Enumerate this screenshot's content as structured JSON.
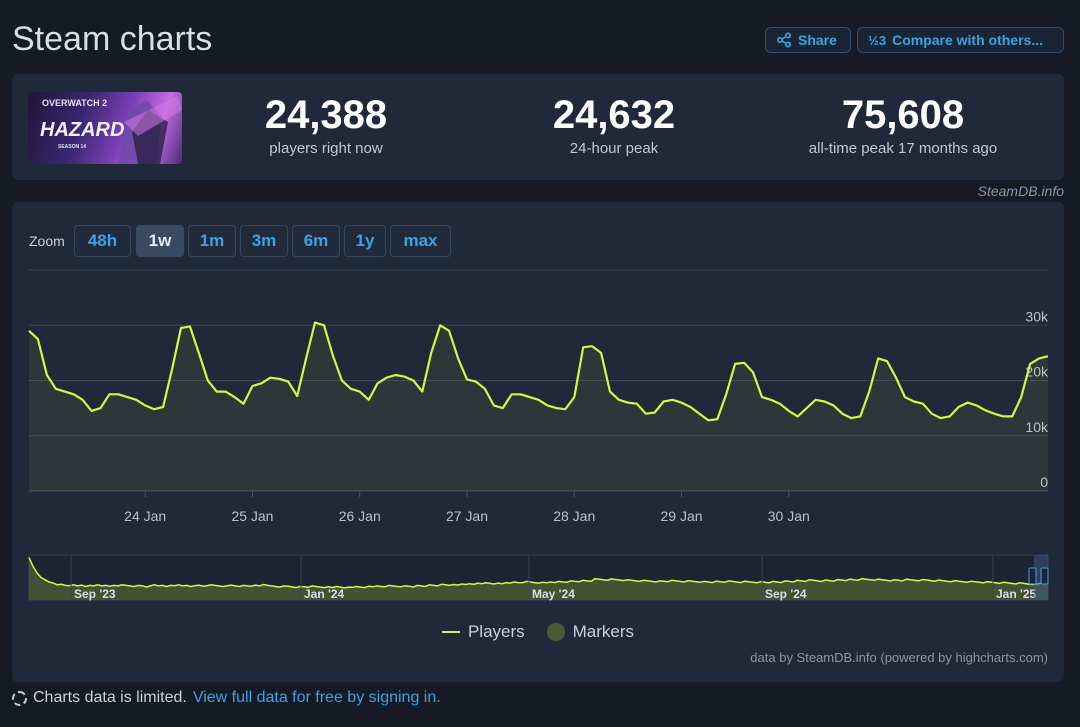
{
  "page": {
    "title": "Steam charts"
  },
  "header": {
    "share_label": "Share",
    "compare_label": "Compare with others..."
  },
  "stats": {
    "game_name": "OVERWATCH 2",
    "game_subtitle": "HAZARD",
    "game_season": "SEASON 14",
    "current": {
      "value": "24,388",
      "label": "players right now"
    },
    "peak24": {
      "value": "24,632",
      "label": "24-hour peak"
    },
    "alltime": {
      "value": "75,608",
      "label": "all-time peak 17 months ago"
    }
  },
  "source_label": "SteamDB.info",
  "zoom": {
    "label": "Zoom",
    "options": [
      "48h",
      "1w",
      "1m",
      "3m",
      "6m",
      "1y",
      "max"
    ],
    "active": "1w"
  },
  "legend": {
    "players": "Players",
    "markers": "Markers"
  },
  "credit": "data by SteamDB.info (powered by highcharts.com)",
  "footer": {
    "text": "Charts data is limited.",
    "link": "View full data for free by signing in."
  },
  "colors": {
    "series": "#d6f542",
    "accent": "#39a3e6",
    "background": "#151a25",
    "panel": "#202939"
  },
  "chart_data": [
    {
      "type": "line",
      "series_name": "Players",
      "x_start": "23 Jan",
      "x_step_hours": 2,
      "x_ticks": [
        "24 Jan",
        "25 Jan",
        "26 Jan",
        "27 Jan",
        "28 Jan",
        "29 Jan",
        "30 Jan"
      ],
      "y_ticks": [
        "0",
        "10k",
        "20k",
        "30k"
      ],
      "ylim": [
        0,
        40000
      ],
      "values": [
        29000,
        27500,
        21000,
        18500,
        18000,
        17500,
        16500,
        14500,
        15000,
        17500,
        17500,
        17000,
        16500,
        15500,
        14800,
        15200,
        22000,
        29500,
        29800,
        25000,
        20000,
        18000,
        18000,
        17000,
        15800,
        19000,
        19500,
        20500,
        20300,
        19800,
        17200,
        24000,
        30500,
        30000,
        24500,
        20000,
        18500,
        18000,
        16500,
        19500,
        20500,
        21000,
        20700,
        20000,
        18000,
        25000,
        30000,
        29000,
        24000,
        20200,
        19800,
        18500,
        15500,
        15000,
        17500,
        17500,
        17000,
        16500,
        15500,
        15000,
        14800,
        17000,
        26000,
        26200,
        25000,
        18000,
        16500,
        16000,
        15800,
        14000,
        14200,
        16200,
        16500,
        16000,
        15200,
        14000,
        12800,
        13000,
        17500,
        23000,
        23200,
        21500,
        17000,
        16500,
        15800,
        14500,
        13500,
        15000,
        16500,
        16200,
        15500,
        14000,
        13200,
        13500,
        18000,
        24000,
        23500,
        20500,
        17000,
        16200,
        15800,
        14000,
        13200,
        13500,
        15200,
        16000,
        15500,
        14600,
        14000,
        13500,
        13500,
        17000,
        23000,
        24000,
        24400
      ]
    },
    {
      "type": "area",
      "role": "navigator",
      "series_name": "Players",
      "x_ticks": [
        "Sep '23",
        "Jan '24",
        "May '24",
        "Sep '24",
        "Jan '25"
      ],
      "values": [
        75608,
        60000,
        48000,
        40000,
        36000,
        32000,
        30000,
        27000,
        28000,
        26000,
        25500,
        27000,
        25000,
        26500,
        24000,
        26000,
        25000,
        27000,
        25000,
        26000,
        24500,
        26000,
        25000,
        27000,
        26000,
        25000,
        24000,
        26000,
        25500,
        23000,
        25000,
        27000,
        25000,
        26000,
        24000,
        26000,
        25500,
        27000,
        25000,
        26000,
        24000,
        25500,
        26500,
        24500,
        25500,
        27000,
        26000,
        25000,
        24000,
        25500,
        26500,
        25000,
        24000,
        26000,
        25000,
        24500,
        26500,
        25000,
        27500,
        26000,
        25000,
        24000,
        23000,
        25000,
        24500,
        23500,
        22000,
        24000,
        23500,
        22500,
        25000,
        24000,
        23000,
        22000,
        23500,
        22000,
        24000,
        23000,
        21500,
        23000,
        22500,
        24000,
        23000,
        22000,
        24500,
        23500,
        25000,
        24000,
        23500,
        26000,
        25000,
        24000,
        23500,
        25500,
        24500,
        23000,
        26000,
        25000,
        24000,
        27000,
        26000,
        25000,
        28000,
        27000,
        26000,
        27500,
        26500,
        28500,
        27500,
        29000,
        28000,
        30000,
        29000,
        30500,
        29500,
        28500,
        30000,
        29000,
        31000,
        30000,
        32000,
        31000,
        30500,
        33000,
        32000,
        31000,
        30000,
        31500,
        30500,
        32000,
        31000,
        33000,
        32000,
        31500,
        34000,
        33000,
        32500,
        35000,
        34000,
        33000,
        38000,
        37000,
        36000,
        35000,
        37500,
        36500,
        35500,
        34500,
        36000,
        35000,
        34000,
        33000,
        35000,
        34000,
        33000,
        32000,
        34000,
        33500,
        32500,
        35000,
        34000,
        33000,
        32000,
        34500,
        33500,
        32500,
        31500,
        33000,
        32000,
        31000,
        33500,
        32500,
        31500,
        34000,
        33000,
        32000,
        31000,
        33500,
        32500,
        31500,
        30500,
        32500,
        31500,
        30500,
        33000,
        32000,
        31000,
        34000,
        33000,
        32000,
        35000,
        34000,
        33000,
        36000,
        35000,
        34000,
        33000,
        35500,
        34500,
        33500,
        36500,
        35500,
        34500,
        37000,
        36000,
        35000,
        38000,
        37000,
        36000,
        35000,
        37000,
        36000,
        35000,
        34000,
        36000,
        35000,
        34000,
        37000,
        36000,
        35000,
        34000,
        36500,
        35500,
        34500,
        33500,
        35500,
        34500,
        33500,
        32500,
        34500,
        33500,
        32500,
        31500,
        33500,
        32500,
        31500,
        30500,
        32500,
        31500,
        30500,
        29500,
        31500,
        30500,
        29500,
        28500,
        30500,
        29500,
        28500,
        27500,
        28000,
        29500,
        33000,
        35000
      ]
    }
  ]
}
